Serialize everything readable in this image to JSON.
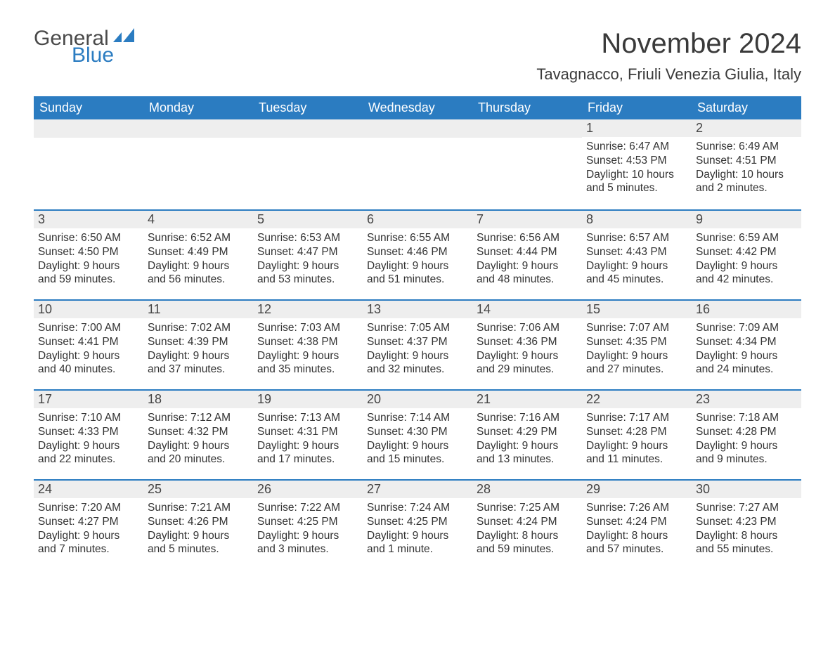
{
  "logo": {
    "word1": "General",
    "word2": "Blue"
  },
  "title": "November 2024",
  "subtitle": "Tavagnacco, Friuli Venezia Giulia, Italy",
  "colors": {
    "header_bg": "#2b7cc1",
    "header_text": "#ffffff",
    "daynum_bg": "#eeeeee",
    "daynum_border": "#2b7cc1",
    "body_text": "#333333",
    "page_bg": "#ffffff",
    "logo_gray": "#4a4a4a",
    "logo_blue": "#2b7cc1"
  },
  "day_headers": [
    "Sunday",
    "Monday",
    "Tuesday",
    "Wednesday",
    "Thursday",
    "Friday",
    "Saturday"
  ],
  "weeks": [
    [
      {
        "empty": true
      },
      {
        "empty": true
      },
      {
        "empty": true
      },
      {
        "empty": true
      },
      {
        "empty": true
      },
      {
        "num": "1",
        "sunrise": "Sunrise: 6:47 AM",
        "sunset": "Sunset: 4:53 PM",
        "daylight": "Daylight: 10 hours and 5 minutes."
      },
      {
        "num": "2",
        "sunrise": "Sunrise: 6:49 AM",
        "sunset": "Sunset: 4:51 PM",
        "daylight": "Daylight: 10 hours and 2 minutes."
      }
    ],
    [
      {
        "num": "3",
        "sunrise": "Sunrise: 6:50 AM",
        "sunset": "Sunset: 4:50 PM",
        "daylight": "Daylight: 9 hours and 59 minutes."
      },
      {
        "num": "4",
        "sunrise": "Sunrise: 6:52 AM",
        "sunset": "Sunset: 4:49 PM",
        "daylight": "Daylight: 9 hours and 56 minutes."
      },
      {
        "num": "5",
        "sunrise": "Sunrise: 6:53 AM",
        "sunset": "Sunset: 4:47 PM",
        "daylight": "Daylight: 9 hours and 53 minutes."
      },
      {
        "num": "6",
        "sunrise": "Sunrise: 6:55 AM",
        "sunset": "Sunset: 4:46 PM",
        "daylight": "Daylight: 9 hours and 51 minutes."
      },
      {
        "num": "7",
        "sunrise": "Sunrise: 6:56 AM",
        "sunset": "Sunset: 4:44 PM",
        "daylight": "Daylight: 9 hours and 48 minutes."
      },
      {
        "num": "8",
        "sunrise": "Sunrise: 6:57 AM",
        "sunset": "Sunset: 4:43 PM",
        "daylight": "Daylight: 9 hours and 45 minutes."
      },
      {
        "num": "9",
        "sunrise": "Sunrise: 6:59 AM",
        "sunset": "Sunset: 4:42 PM",
        "daylight": "Daylight: 9 hours and 42 minutes."
      }
    ],
    [
      {
        "num": "10",
        "sunrise": "Sunrise: 7:00 AM",
        "sunset": "Sunset: 4:41 PM",
        "daylight": "Daylight: 9 hours and 40 minutes."
      },
      {
        "num": "11",
        "sunrise": "Sunrise: 7:02 AM",
        "sunset": "Sunset: 4:39 PM",
        "daylight": "Daylight: 9 hours and 37 minutes."
      },
      {
        "num": "12",
        "sunrise": "Sunrise: 7:03 AM",
        "sunset": "Sunset: 4:38 PM",
        "daylight": "Daylight: 9 hours and 35 minutes."
      },
      {
        "num": "13",
        "sunrise": "Sunrise: 7:05 AM",
        "sunset": "Sunset: 4:37 PM",
        "daylight": "Daylight: 9 hours and 32 minutes."
      },
      {
        "num": "14",
        "sunrise": "Sunrise: 7:06 AM",
        "sunset": "Sunset: 4:36 PM",
        "daylight": "Daylight: 9 hours and 29 minutes."
      },
      {
        "num": "15",
        "sunrise": "Sunrise: 7:07 AM",
        "sunset": "Sunset: 4:35 PM",
        "daylight": "Daylight: 9 hours and 27 minutes."
      },
      {
        "num": "16",
        "sunrise": "Sunrise: 7:09 AM",
        "sunset": "Sunset: 4:34 PM",
        "daylight": "Daylight: 9 hours and 24 minutes."
      }
    ],
    [
      {
        "num": "17",
        "sunrise": "Sunrise: 7:10 AM",
        "sunset": "Sunset: 4:33 PM",
        "daylight": "Daylight: 9 hours and 22 minutes."
      },
      {
        "num": "18",
        "sunrise": "Sunrise: 7:12 AM",
        "sunset": "Sunset: 4:32 PM",
        "daylight": "Daylight: 9 hours and 20 minutes."
      },
      {
        "num": "19",
        "sunrise": "Sunrise: 7:13 AM",
        "sunset": "Sunset: 4:31 PM",
        "daylight": "Daylight: 9 hours and 17 minutes."
      },
      {
        "num": "20",
        "sunrise": "Sunrise: 7:14 AM",
        "sunset": "Sunset: 4:30 PM",
        "daylight": "Daylight: 9 hours and 15 minutes."
      },
      {
        "num": "21",
        "sunrise": "Sunrise: 7:16 AM",
        "sunset": "Sunset: 4:29 PM",
        "daylight": "Daylight: 9 hours and 13 minutes."
      },
      {
        "num": "22",
        "sunrise": "Sunrise: 7:17 AM",
        "sunset": "Sunset: 4:28 PM",
        "daylight": "Daylight: 9 hours and 11 minutes."
      },
      {
        "num": "23",
        "sunrise": "Sunrise: 7:18 AM",
        "sunset": "Sunset: 4:28 PM",
        "daylight": "Daylight: 9 hours and 9 minutes."
      }
    ],
    [
      {
        "num": "24",
        "sunrise": "Sunrise: 7:20 AM",
        "sunset": "Sunset: 4:27 PM",
        "daylight": "Daylight: 9 hours and 7 minutes."
      },
      {
        "num": "25",
        "sunrise": "Sunrise: 7:21 AM",
        "sunset": "Sunset: 4:26 PM",
        "daylight": "Daylight: 9 hours and 5 minutes."
      },
      {
        "num": "26",
        "sunrise": "Sunrise: 7:22 AM",
        "sunset": "Sunset: 4:25 PM",
        "daylight": "Daylight: 9 hours and 3 minutes."
      },
      {
        "num": "27",
        "sunrise": "Sunrise: 7:24 AM",
        "sunset": "Sunset: 4:25 PM",
        "daylight": "Daylight: 9 hours and 1 minute."
      },
      {
        "num": "28",
        "sunrise": "Sunrise: 7:25 AM",
        "sunset": "Sunset: 4:24 PM",
        "daylight": "Daylight: 8 hours and 59 minutes."
      },
      {
        "num": "29",
        "sunrise": "Sunrise: 7:26 AM",
        "sunset": "Sunset: 4:24 PM",
        "daylight": "Daylight: 8 hours and 57 minutes."
      },
      {
        "num": "30",
        "sunrise": "Sunrise: 7:27 AM",
        "sunset": "Sunset: 4:23 PM",
        "daylight": "Daylight: 8 hours and 55 minutes."
      }
    ]
  ]
}
